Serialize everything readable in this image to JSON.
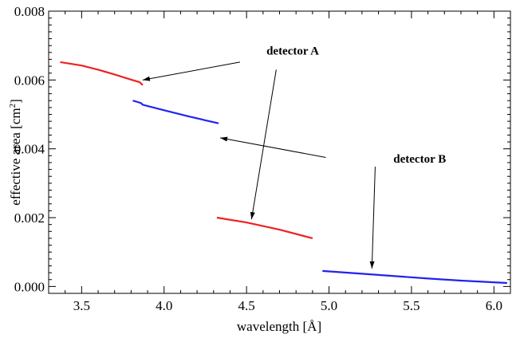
{
  "chart_data": {
    "type": "line",
    "title": "",
    "xlabel": "wavelength [Å]",
    "ylabel_main": "effective area [cm",
    "ylabel_sup": "2",
    "ylabel_close": "]",
    "xlim": [
      3.3,
      6.1
    ],
    "ylim": [
      -0.0002,
      0.008
    ],
    "x_ticks": [
      3.5,
      4.0,
      4.5,
      5.0,
      5.5,
      6.0
    ],
    "x_tick_labels": [
      "3.5",
      "4.0",
      "4.5",
      "5.0",
      "5.5",
      "6.0"
    ],
    "y_ticks": [
      0.0,
      0.002,
      0.004,
      0.006,
      0.008
    ],
    "y_tick_labels": [
      "0.000",
      "0.002",
      "0.004",
      "0.006",
      "0.008"
    ],
    "grid": false,
    "series": [
      {
        "color": "#ee2222",
        "segments": [
          [
            [
              3.37,
              0.00652
            ],
            [
              3.5,
              0.00642
            ],
            [
              3.6,
              0.0063
            ],
            [
              3.7,
              0.00616
            ],
            [
              3.8,
              0.00601
            ],
            [
              3.85,
              0.00594
            ],
            [
              3.86,
              0.0059
            ],
            [
              3.87,
              0.00585
            ]
          ],
          [
            [
              4.32,
              0.002
            ],
            [
              4.5,
              0.00186
            ],
            [
              4.7,
              0.00165
            ],
            [
              4.9,
              0.0014
            ]
          ]
        ]
      },
      {
        "color": "#2222ee",
        "segments": [
          [
            [
              3.81,
              0.0054
            ],
            [
              3.84,
              0.00536
            ],
            [
              3.86,
              0.00533
            ],
            [
              3.87,
              0.00528
            ],
            [
              4.0,
              0.00512
            ],
            [
              4.15,
              0.00494
            ],
            [
              4.33,
              0.00474
            ]
          ],
          [
            [
              4.96,
              0.00045
            ],
            [
              5.2,
              0.00037
            ],
            [
              5.4,
              0.0003
            ],
            [
              5.6,
              0.00023
            ],
            [
              5.8,
              0.00017
            ],
            [
              6.08,
              0.0001
            ]
          ]
        ]
      }
    ],
    "annotations": [
      {
        "text": "detector  A",
        "text_anchor": [
          4.78,
          0.00674
        ],
        "arrow_from": [
          [
            4.46,
            0.00652
          ],
          [
            4.68,
            0.0063
          ]
        ],
        "arrow_to": [
          [
            3.87,
            0.006
          ],
          [
            4.53,
            0.00195
          ]
        ]
      },
      {
        "text": "detector  B",
        "text_anchor": [
          5.55,
          0.0036
        ],
        "arrow_from": [
          [
            4.98,
            0.00375
          ],
          [
            5.28,
            0.00348
          ]
        ],
        "arrow_to": [
          [
            4.34,
            0.00432
          ],
          [
            5.26,
            0.00052
          ]
        ]
      }
    ]
  }
}
